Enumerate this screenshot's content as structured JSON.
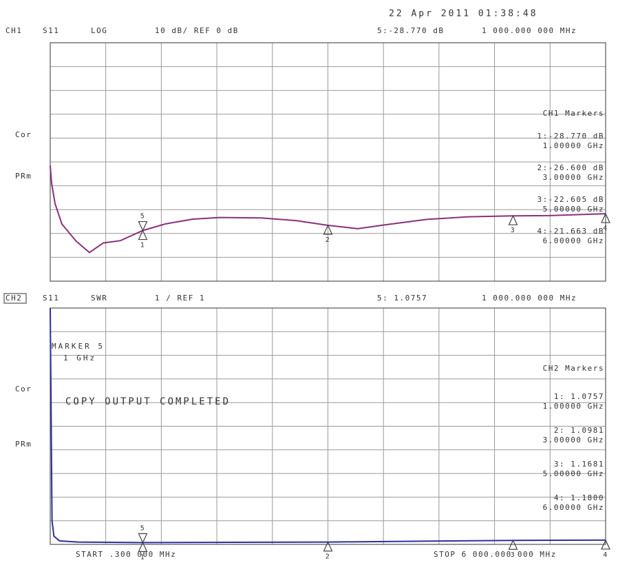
{
  "header": {
    "datetime": "22 Apr 2011  01:38:48"
  },
  "chart_data": [
    {
      "type": "line",
      "channel": "CH1",
      "param": "S11",
      "format": "LOG",
      "scale": "10 dB/ REF 0 dB",
      "readout": "5:-28.770 dB",
      "readout_freq": "1 000.000 000 MHz",
      "side_labels": [
        "Cor",
        "PRm"
      ],
      "marker_title": "CH1 Markers",
      "marker_readouts": [
        [
          "1:-28.770 dB",
          "1.00000 GHz"
        ],
        [
          "2:-26.600 dB",
          "3.00000 GHz"
        ],
        [
          "3:-22.605 dB",
          "5.00000 GHz"
        ],
        [
          "4:-21.663 dB",
          "6.00000 GHz"
        ]
      ],
      "x": [
        0.3,
        15,
        52,
        126,
        275,
        424,
        573,
        759,
        1000,
        1242,
        1540,
        1837,
        2283,
        2655,
        3000,
        3322,
        3619,
        4066,
        4512,
        5000,
        5390,
        6000
      ],
      "values": [
        -1.5,
        -9,
        -17.5,
        -26,
        -33,
        -38,
        -34,
        -33,
        -28.77,
        -26,
        -24,
        -23.3,
        -23.5,
        -24.6,
        -26.6,
        -28,
        -26.4,
        -24.1,
        -23,
        -22.6,
        -22.5,
        -21.7
      ],
      "color": "#8a2f7c",
      "xlim": [
        0.3,
        6000
      ],
      "ylim": [
        -50,
        50
      ],
      "xticks": [
        600,
        1200,
        1800,
        2400,
        3000,
        3600,
        4200,
        4800,
        5400
      ],
      "yticks": [
        -40,
        -30,
        -20,
        -10,
        0,
        10,
        20,
        30,
        40
      ],
      "markers": [
        {
          "label": "1",
          "x": 1000
        },
        {
          "label": "2",
          "x": 3000
        },
        {
          "label": "3",
          "x": 5000
        },
        {
          "label": "4",
          "x": 6000
        },
        {
          "label": "5",
          "x": 1000,
          "active": true
        }
      ]
    },
    {
      "type": "line",
      "channel": "CH2",
      "param": "S11",
      "format": "SWR",
      "scale": "1  / REF 1",
      "readout": "5: 1.0757",
      "readout_freq": "1 000.000 000 MHz",
      "side_labels": [
        "Cor",
        "PRm"
      ],
      "marker_title": "CH2 Markers",
      "marker_readouts": [
        [
          "1: 1.0757",
          "1.00000 GHz"
        ],
        [
          "2: 1.0981",
          "3.00000 GHz"
        ],
        [
          "3: 1.1681",
          "5.00000 GHz"
        ],
        [
          "4: 1.1800",
          "6.00000 GHz"
        ]
      ],
      "annotations": [
        "MARKER 5",
        "1 GHz",
        "COPY OUTPUT COMPLETED"
      ],
      "x": [
        0.3,
        20,
        40,
        100,
        300,
        1000,
        3000,
        5000,
        6000
      ],
      "values": [
        11,
        2.0,
        1.35,
        1.15,
        1.1,
        1.0757,
        1.0981,
        1.1681,
        1.18
      ],
      "color": "#2b2f9c",
      "xlim": [
        0.3,
        6000
      ],
      "ylim": [
        1,
        11
      ],
      "xticks": [
        600,
        1200,
        1800,
        2400,
        3000,
        3600,
        4200,
        4800,
        5400
      ],
      "yticks": [
        2,
        3,
        4,
        5,
        6,
        7,
        8,
        9,
        10
      ],
      "markers": [
        {
          "label": "1",
          "x": 1000
        },
        {
          "label": "2",
          "x": 3000
        },
        {
          "label": "3",
          "x": 5000
        },
        {
          "label": "4",
          "x": 6000
        },
        {
          "label": "5",
          "x": 1000,
          "active": true
        }
      ]
    }
  ],
  "footer": {
    "start": "START .300 000 MHz",
    "stop": "STOP 6 000.000 000 MHz"
  }
}
